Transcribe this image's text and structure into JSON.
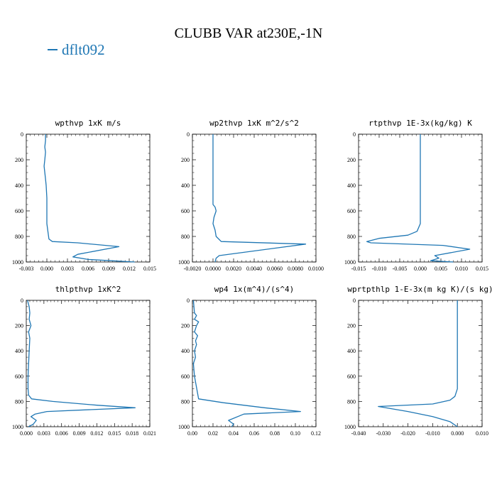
{
  "title": "CLUBB VAR at230E,-1N",
  "legend": {
    "label": "dflt092",
    "color": "#1f77b4"
  },
  "chart_data": [
    {
      "type": "line",
      "title": "wpthvp  1xK m/s",
      "xlim": [
        -0.003,
        0.015
      ],
      "ylim": [
        1000,
        0
      ],
      "xticks": [
        "-0.003",
        "0.000",
        "0.003",
        "0.006",
        "0.009",
        "0.012",
        "0.015"
      ],
      "yticks": [
        "0",
        "200",
        "400",
        "600",
        "800",
        "1000"
      ],
      "series": [
        {
          "x": [
            -0.0002,
            -0.0002,
            -0.0003,
            -0.0002,
            -0.0003,
            -0.0004,
            -0.0003,
            -0.0002,
            -0.0001,
            0.0,
            0.0,
            0.0003,
            0.0008,
            0.0045,
            0.0105,
            0.0045,
            0.0038,
            0.006,
            0.0128
          ],
          "y": [
            0,
            50,
            100,
            140,
            200,
            250,
            300,
            350,
            400,
            500,
            700,
            820,
            840,
            850,
            880,
            940,
            960,
            980,
            1000
          ]
        }
      ]
    },
    {
      "type": "line",
      "title": "wp2thvp  1xK m^2/s^2",
      "xlim": [
        -0.002,
        0.01
      ],
      "ylim": [
        1000,
        0
      ],
      "xticks": [
        "-0.0020",
        "0.0000",
        "0.0020",
        "0.0040",
        "0.0060",
        "0.0080",
        "0.0100"
      ],
      "yticks": [
        "0",
        "200",
        "400",
        "600",
        "800",
        "1000"
      ],
      "series": [
        {
          "x": [
            0.0,
            0.0,
            0.0,
            0.0,
            0.0002,
            0.0003,
            0.0001,
            0.0,
            0.0002,
            0.0003,
            0.0008,
            0.009,
            0.0006,
            0.0003,
            0.0002
          ],
          "y": [
            0,
            200,
            400,
            550,
            570,
            600,
            650,
            700,
            750,
            800,
            840,
            860,
            950,
            970,
            1000
          ]
        }
      ]
    },
    {
      "type": "line",
      "title": "rtpthvp  1E-3x(kg/kg) K",
      "xlim": [
        -0.015,
        0.015
      ],
      "ylim": [
        1000,
        0
      ],
      "xticks": [
        "-0.015",
        "-0.010",
        "-0.005",
        "0.000",
        "0.005",
        "0.010",
        "0.015"
      ],
      "yticks": [
        "0",
        "200",
        "400",
        "600",
        "800",
        "1000"
      ],
      "series": [
        {
          "x": [
            0.0,
            0.0,
            0.0,
            -0.0008,
            -0.003,
            -0.01,
            -0.013,
            -0.012,
            0.0055,
            0.012,
            0.0035,
            0.0045,
            0.0025,
            0.008
          ],
          "y": [
            0,
            400,
            700,
            760,
            790,
            815,
            840,
            850,
            870,
            900,
            950,
            970,
            990,
            1000
          ]
        }
      ]
    },
    {
      "type": "line",
      "title": "thlpthvp  1xK^2",
      "xlim": [
        0.0,
        0.021
      ],
      "ylim": [
        1000,
        0
      ],
      "xticks": [
        "0.000",
        "0.003",
        "0.006",
        "0.009",
        "0.012",
        "0.015",
        "0.018",
        "0.021"
      ],
      "yticks": [
        "0",
        "200",
        "400",
        "600",
        "800",
        "1000"
      ],
      "series": [
        {
          "x": [
            0.0002,
            0.0005,
            0.0006,
            0.0005,
            0.0008,
            0.0004,
            0.0006,
            0.0005,
            0.0004,
            0.0003,
            0.0003,
            0.0004,
            0.0009,
            0.0045,
            0.012,
            0.0185,
            0.0035,
            0.0015,
            0.0008,
            0.0017,
            0.0012,
            0.0004
          ],
          "y": [
            0,
            50,
            100,
            150,
            200,
            250,
            300,
            400,
            500,
            600,
            700,
            750,
            780,
            800,
            830,
            850,
            880,
            900,
            920,
            950,
            980,
            1000
          ]
        }
      ]
    },
    {
      "type": "line",
      "title": "wp4  1x(m^4)/(s^4)",
      "xlim": [
        0.0,
        0.12
      ],
      "ylim": [
        1000,
        0
      ],
      "xticks": [
        "0.00",
        "0.02",
        "0.04",
        "0.06",
        "0.08",
        "0.10",
        "0.12"
      ],
      "yticks": [
        "0",
        "200",
        "400",
        "600",
        "800",
        "1000"
      ],
      "series": [
        {
          "x": [
            0.001,
            0.002,
            0.004,
            0.002,
            0.006,
            0.004,
            0.002,
            0.005,
            0.003,
            0.004,
            0.002,
            0.003,
            0.001,
            0.002,
            0.006,
            0.03,
            0.07,
            0.105,
            0.05,
            0.035,
            0.04,
            0.038
          ],
          "y": [
            0,
            100,
            120,
            150,
            170,
            200,
            250,
            280,
            320,
            350,
            400,
            450,
            500,
            600,
            780,
            810,
            850,
            880,
            900,
            950,
            980,
            1000
          ]
        }
      ]
    },
    {
      "type": "line",
      "title": "wprtpthlp  1-E-3x(m kg K)/(s kg)",
      "xlim": [
        -0.04,
        0.01
      ],
      "ylim": [
        1000,
        0
      ],
      "xticks": [
        "-0.040",
        "-0.030",
        "-0.020",
        "-0.010",
        "0.000",
        "0.010"
      ],
      "yticks": [
        "0",
        "200",
        "400",
        "600",
        "800",
        "1000"
      ],
      "series": [
        {
          "x": [
            0.0,
            0.0,
            0.0,
            -0.001,
            -0.003,
            -0.01,
            -0.032,
            -0.02,
            -0.01,
            -0.003,
            0.0
          ],
          "y": [
            0,
            400,
            700,
            760,
            790,
            820,
            840,
            880,
            920,
            960,
            1000
          ]
        }
      ]
    }
  ]
}
